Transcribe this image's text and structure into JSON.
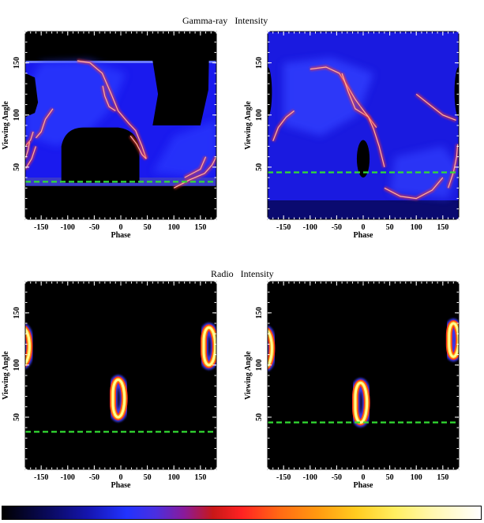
{
  "sections": {
    "gamma": {
      "title_a": "Gamma-ray",
      "title_b": "Intensity"
    },
    "radio": {
      "title_a": "Radio",
      "title_b": "Intensity"
    }
  },
  "axis_labels": {
    "x": "Phase",
    "y": "Viewing Angle"
  },
  "colors": {
    "background": "#000000",
    "low": "#1a1aff",
    "mid": "#ff2a1a",
    "high": "#ffff80",
    "reference_line": "#33dd33"
  },
  "chart_data": [
    {
      "type": "heatmap",
      "title": "Gamma-ray  Intensity",
      "xlabel": "Phase",
      "ylabel": "Viewing Angle",
      "xlim": [
        -180,
        180
      ],
      "ylim": [
        0,
        180
      ],
      "xticks": [
        -150,
        -100,
        -50,
        0,
        50,
        100,
        150
      ],
      "yticks": [
        50,
        100,
        150
      ],
      "reference_line_y": 36
    },
    {
      "type": "heatmap",
      "title": "Gamma-ray  Intensity",
      "xlabel": "Phase",
      "ylabel": "Viewing Angle",
      "xlim": [
        -180,
        180
      ],
      "ylim": [
        0,
        180
      ],
      "xticks": [
        -150,
        -100,
        -50,
        0,
        50,
        100,
        150
      ],
      "yticks": [
        50,
        100,
        150
      ],
      "reference_line_y": 45
    },
    {
      "type": "heatmap",
      "title": "Radio  Intensity",
      "xlabel": "Phase",
      "ylabel": "Viewing Angle",
      "xlim": [
        -180,
        180
      ],
      "ylim": [
        0,
        180
      ],
      "xticks": [
        -150,
        -100,
        -50,
        0,
        50,
        100,
        150
      ],
      "yticks": [
        50,
        100,
        150
      ],
      "reference_line_y": 36
    },
    {
      "type": "heatmap",
      "title": "Radio  Intensity",
      "xlabel": "Phase",
      "ylabel": "Viewing Angle",
      "xlim": [
        -180,
        180
      ],
      "ylim": [
        0,
        180
      ],
      "xticks": [
        -150,
        -100,
        -50,
        0,
        50,
        100,
        150
      ],
      "yticks": [
        50,
        100,
        150
      ],
      "reference_line_y": 45
    }
  ]
}
